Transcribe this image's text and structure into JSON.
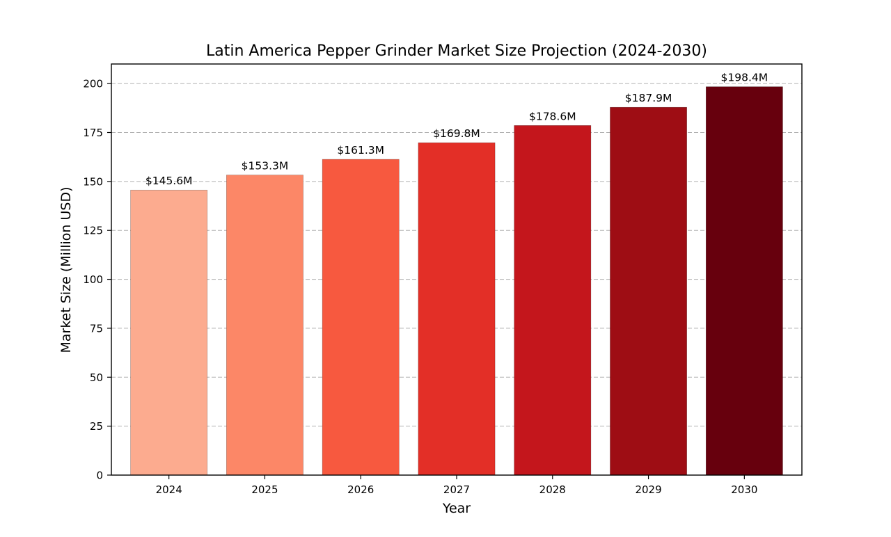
{
  "chart_data": {
    "type": "bar",
    "title": "Latin America Pepper Grinder Market Size Projection (2024-2030)",
    "xlabel": "Year",
    "ylabel": "Market Size (Million USD)",
    "categories": [
      "2024",
      "2025",
      "2026",
      "2027",
      "2028",
      "2029",
      "2030"
    ],
    "values": [
      145.6,
      153.3,
      161.3,
      169.8,
      178.6,
      187.9,
      198.4
    ],
    "data_labels": [
      "$145.6M",
      "$153.3M",
      "$161.3M",
      "$169.8M",
      "$178.6M",
      "$187.9M",
      "$198.4M"
    ],
    "bar_colors": [
      "#fcab8f",
      "#fc8767",
      "#f7593f",
      "#e32f27",
      "#c4161c",
      "#9e0d14",
      "#67000d"
    ],
    "ylim": [
      0,
      210
    ],
    "yticks": [
      0,
      25,
      50,
      75,
      100,
      125,
      150,
      175,
      200
    ],
    "grid": "y-dashed",
    "legend": "none"
  }
}
